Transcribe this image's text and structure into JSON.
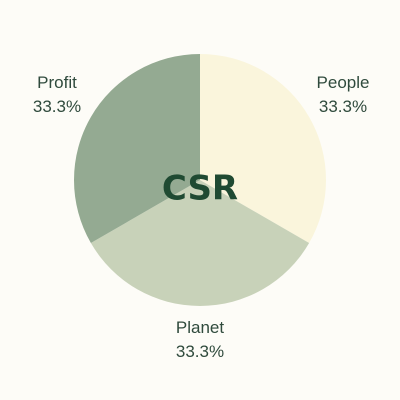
{
  "chart_data": {
    "type": "pie",
    "center_label": "CSR",
    "slices": [
      {
        "label": "People",
        "value": 33.3,
        "value_label": "33.3%",
        "color": "#faf5dc"
      },
      {
        "label": "Planet",
        "value": 33.3,
        "value_label": "33.3%",
        "color": "#c8d2b9"
      },
      {
        "label": "Profit",
        "value": 33.3,
        "value_label": "33.3%",
        "color": "#94aa92"
      }
    ]
  }
}
